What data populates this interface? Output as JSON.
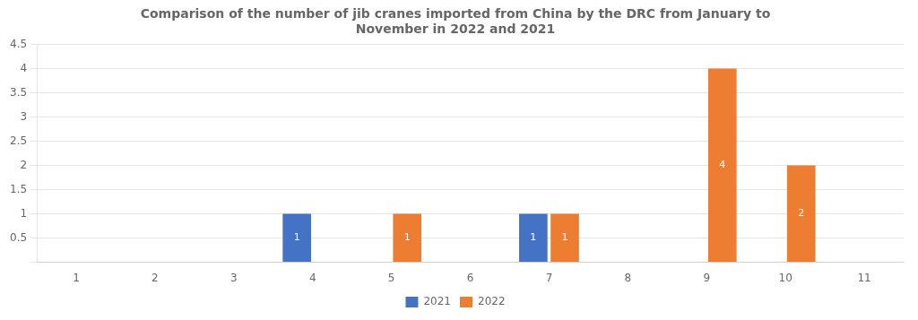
{
  "chart_data": {
    "type": "bar",
    "title": "Comparison of the number of jib cranes imported from China by the DRC from January to\nNovember in 2022 and 2021",
    "categories": [
      "1",
      "2",
      "3",
      "4",
      "5",
      "6",
      "7",
      "8",
      "9",
      "10",
      "11"
    ],
    "series": [
      {
        "name": "2021",
        "color": "#4472C4",
        "values": [
          0,
          0,
          0,
          1,
          0,
          0,
          1,
          0,
          0,
          0,
          0
        ]
      },
      {
        "name": "2022",
        "color": "#ED7D31",
        "values": [
          0,
          0,
          0,
          0,
          1,
          0,
          1,
          0,
          4,
          2,
          0
        ]
      }
    ],
    "ylim": [
      0,
      4.5
    ],
    "yticks": [
      {
        "value": 0,
        "label": null
      },
      0.5,
      1,
      1.5,
      2,
      2.5,
      3,
      3.5,
      4,
      4.5
    ],
    "grid": true,
    "legend": "bottom",
    "data_labels": true
  }
}
